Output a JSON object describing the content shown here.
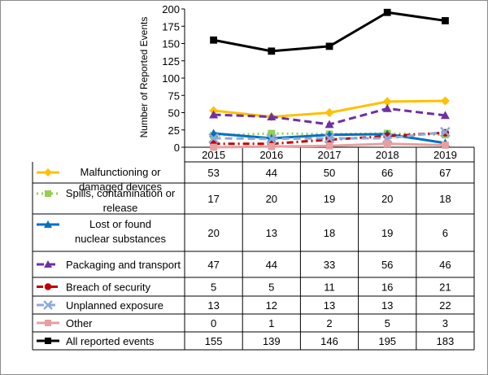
{
  "chart_data": {
    "type": "line",
    "title": "",
    "xlabel": "",
    "ylabel": "Number of Reported Events",
    "ylim": [
      0,
      200
    ],
    "yticks": [
      0,
      25,
      50,
      75,
      100,
      125,
      150,
      175,
      200
    ],
    "grid": false,
    "legend_placement": "data-table-left",
    "categories": [
      "2015",
      "2016",
      "2017",
      "2018",
      "2019"
    ],
    "series": [
      {
        "name": "Malfunctioning or damaged devices",
        "label_lines": [
          "Malfunctioning or",
          "damaged devices"
        ],
        "values": [
          53,
          44,
          50,
          66,
          67
        ],
        "color": "#FFC000",
        "marker": "diamond",
        "dash": "solid",
        "width": 3
      },
      {
        "name": "Spills, contamination or release",
        "label_lines": [
          "Spills, contamination or",
          "release"
        ],
        "values": [
          17,
          20,
          19,
          20,
          18
        ],
        "color": "#92D050",
        "marker": "square",
        "dash": "dot",
        "width": 3
      },
      {
        "name": "Lost or found nuclear substances",
        "label_lines": [
          "Lost or found",
          "nuclear substances"
        ],
        "values": [
          20,
          13,
          18,
          19,
          6
        ],
        "color": "#0070C0",
        "marker": "triangle",
        "dash": "solid",
        "width": 3
      },
      {
        "name": "Packaging and transport",
        "label_lines": [
          "Packaging and transport"
        ],
        "values": [
          47,
          44,
          33,
          56,
          46
        ],
        "color": "#7030A0",
        "marker": "triangle",
        "dash": "dash",
        "width": 3
      },
      {
        "name": "Breach of security",
        "label_lines": [
          "Breach of security"
        ],
        "values": [
          5,
          5,
          11,
          16,
          21
        ],
        "color": "#C00000",
        "marker": "circle",
        "dash": "dashdot",
        "width": 3
      },
      {
        "name": "Unplanned exposure",
        "label_lines": [
          "Unplanned exposure"
        ],
        "values": [
          13,
          12,
          13,
          13,
          22
        ],
        "color": "#8EA9DB",
        "marker": "x",
        "dash": "dash",
        "width": 3
      },
      {
        "name": "Other",
        "label_lines": [
          "Other"
        ],
        "values": [
          0,
          1,
          2,
          5,
          3
        ],
        "color": "#E6A0A0",
        "marker": "square",
        "dash": "solid",
        "width": 3
      },
      {
        "name": "All reported events",
        "label_lines": [
          "All reported events"
        ],
        "values": [
          155,
          139,
          146,
          195,
          183
        ],
        "color": "#000000",
        "marker": "square",
        "dash": "solid",
        "width": 3
      }
    ]
  }
}
